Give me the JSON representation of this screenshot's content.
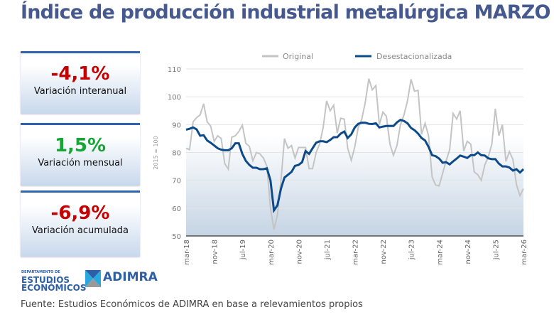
{
  "title": "Índice de producción industrial metalúrgica MARZO",
  "cards": [
    {
      "value": "-4,1%",
      "label": "Variación interanual",
      "color": "#c40000"
    },
    {
      "value": "1,5%",
      "label": "Variación mensual",
      "color": "#17a538"
    },
    {
      "value": "-6,9%",
      "label": "Variación acumulada",
      "color": "#c40000"
    }
  ],
  "logos": {
    "dept_small": "DEPARTAMENTO DE",
    "dept_line1": "ESTUDIOS",
    "dept_line2": "ECONÓMICOS",
    "adimra": "ADIMRA"
  },
  "source": "Fuente: Estudios Económicos de ADIMRA en base a relevamientos propios",
  "chart_data": {
    "type": "line",
    "ylabel": "2015 = 100",
    "ylim": [
      50,
      110
    ],
    "yticks": [
      50,
      60,
      70,
      80,
      90,
      100,
      110
    ],
    "grid": true,
    "legend_position": "top",
    "x_start": "mar-18",
    "x_end": "mar-26",
    "xticks": [
      "mar-18",
      "nov-18",
      "jul-19",
      "mar-20",
      "nov-20",
      "jul-21",
      "mar-22",
      "nov-22",
      "jul-23",
      "mar-24",
      "nov-24",
      "jul-25",
      "mar-26"
    ],
    "series": [
      {
        "name": "Original",
        "color": "#c4c4c4",
        "values": [
          81.5,
          81,
          91,
          92.5,
          93.5,
          97.5,
          91,
          89.5,
          84,
          86,
          85,
          76,
          74,
          85.5,
          86,
          87.5,
          89.8,
          83.3,
          82.2,
          77,
          80,
          79.5,
          78,
          75,
          60,
          52.3,
          57.5,
          70,
          85,
          81.5,
          82.5,
          78,
          81.8,
          81.8,
          81.8,
          74.2,
          74.2,
          80,
          83,
          89,
          98.5,
          95,
          97,
          87,
          92.3,
          92,
          81.5,
          77.2,
          82,
          89,
          92,
          98,
          106.5,
          102.5,
          104,
          90,
          94.5,
          93,
          83,
          79,
          82.5,
          90,
          93.5,
          98.5,
          106.3,
          102,
          102.3,
          86.5,
          90.5,
          86,
          71.2,
          68.3,
          68,
          72.5,
          77,
          81,
          94,
          92,
          95,
          80.5,
          84,
          83,
          73,
          72,
          70,
          75.5,
          78.5,
          83,
          95.7,
          86,
          90,
          76.8,
          80.3,
          77.5,
          68.5,
          64.5,
          67
        ]
      },
      {
        "name": "Desestacionalizada",
        "color": "#0d4a8a",
        "values": [
          88.2,
          88.5,
          89,
          88.3,
          86,
          86.2,
          84.3,
          83.5,
          82.5,
          81.5,
          81,
          80.8,
          80.8,
          81.5,
          83.3,
          83.3,
          79.5,
          77,
          75.5,
          74.5,
          74.5,
          74,
          74,
          74.3,
          70,
          59.2,
          61,
          67,
          71,
          72,
          73,
          75.2,
          75.5,
          76.5,
          80.5,
          79.5,
          81.5,
          83.5,
          84,
          84,
          83.7,
          84.5,
          85.5,
          85.5,
          86.8,
          87.5,
          85.2,
          86.5,
          89,
          90.3,
          90.7,
          90.7,
          90.3,
          90.2,
          90.5,
          89,
          89.3,
          89.5,
          89.5,
          89.5,
          90.8,
          91.7,
          91.3,
          90.5,
          88.8,
          88,
          86.8,
          85.2,
          84.3,
          82,
          79,
          78.7,
          77.8,
          76.3,
          76.5,
          75.7,
          76.8,
          77.8,
          78.9,
          78.5,
          78,
          79,
          79,
          80,
          79,
          78.9,
          77.9,
          77.6,
          77.6,
          76,
          75,
          75,
          74.6,
          73.5,
          74,
          72.8,
          74
        ]
      }
    ]
  }
}
